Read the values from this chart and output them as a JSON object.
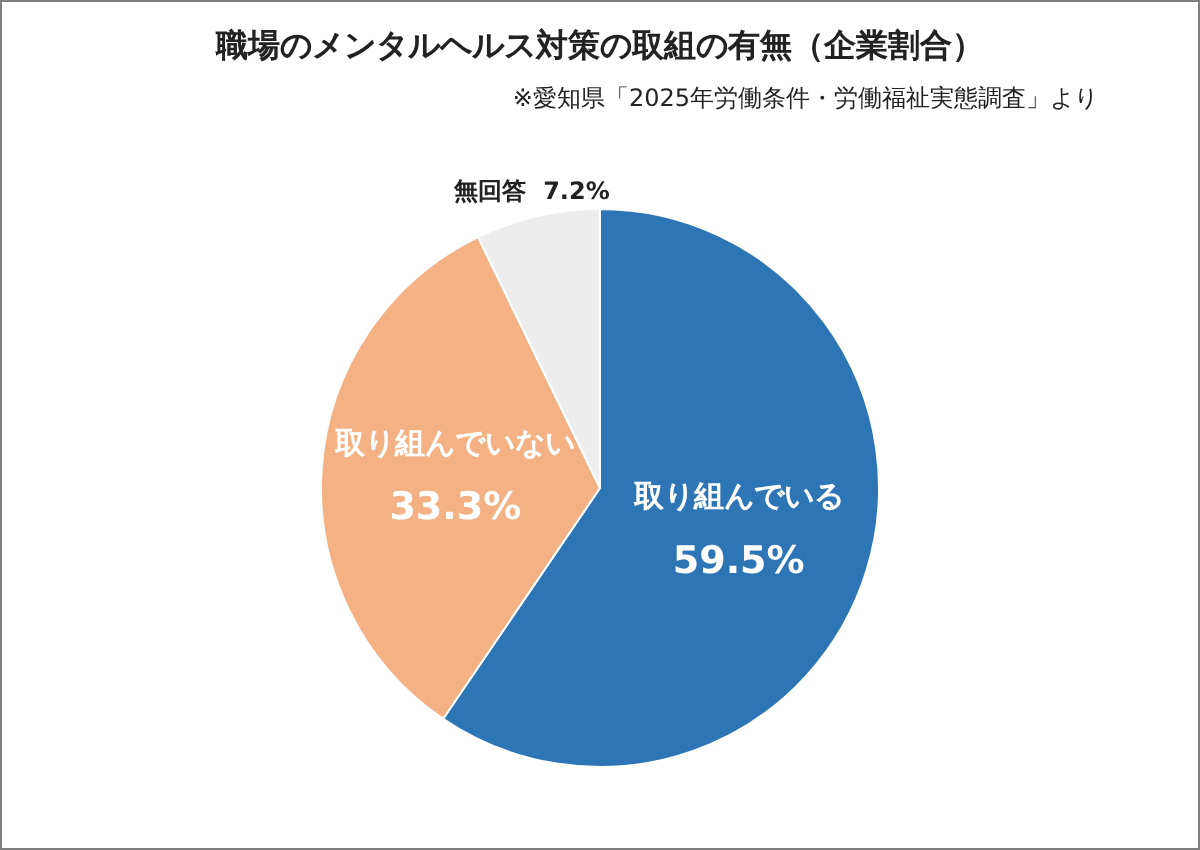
{
  "chart_data": {
    "type": "pie",
    "title": "職場のメンタルヘルス対策の取組の有無（企業割合）",
    "subtitle": "※愛知県「2025年労働条件・労働福祉実態調査」より",
    "categories": [
      "取り組んでいる",
      "取り組んでいない",
      "無回答"
    ],
    "values": [
      59.5,
      33.3,
      7.2
    ],
    "colors": [
      "#2e75b6",
      "#f4b183",
      "#ededed"
    ],
    "value_labels": [
      "59.5%",
      "33.3%",
      "7.2%"
    ],
    "legend": false
  }
}
